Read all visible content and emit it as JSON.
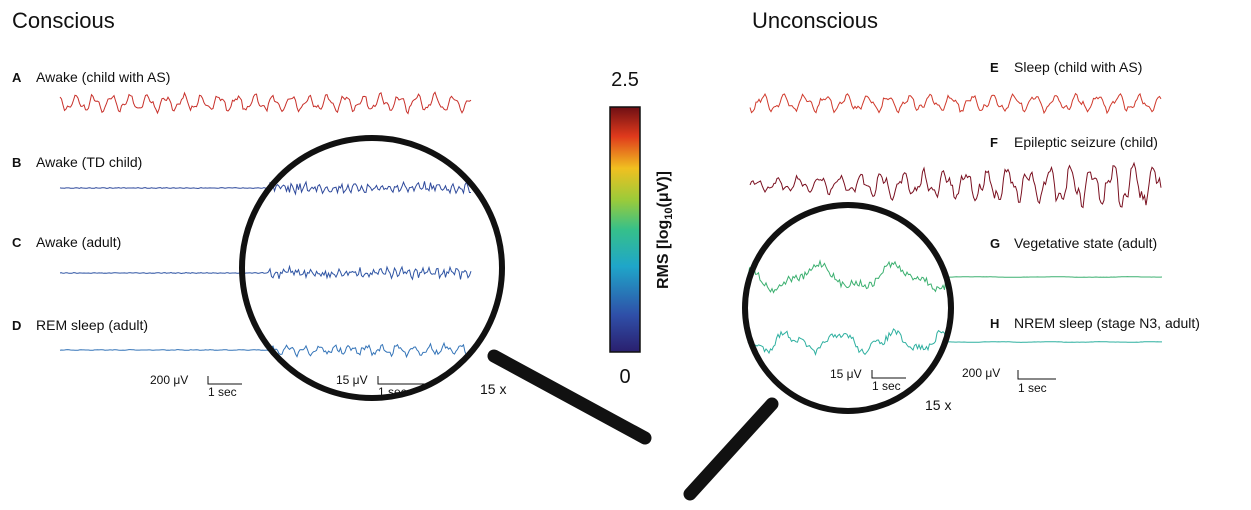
{
  "headings": {
    "conscious": "Conscious",
    "unconscious": "Unconscious"
  },
  "panels": [
    {
      "letter": "A",
      "label": "Awake (child with AS)"
    },
    {
      "letter": "B",
      "label": "Awake (TD child)"
    },
    {
      "letter": "C",
      "label": "Awake (adult)"
    },
    {
      "letter": "D",
      "label": "REM sleep (adult)"
    },
    {
      "letter": "E",
      "label": "Sleep (child with AS)"
    },
    {
      "letter": "F",
      "label": "Epileptic seizure (child)"
    },
    {
      "letter": "G",
      "label": "Vegetative state (adult)"
    },
    {
      "letter": "H",
      "label": "NREM sleep (stage N3, adult)"
    }
  ],
  "scale_bars": {
    "left": {
      "amplitude": "200 μV",
      "time": "1 sec"
    },
    "left_zoom": {
      "amplitude": "15 μV",
      "time": "1 sec"
    },
    "right_zoom": {
      "amplitude": "15 μV",
      "time": "1 sec"
    },
    "right": {
      "amplitude": "200 μV",
      "time": "1 sec"
    }
  },
  "magnification": {
    "left": "15 x",
    "right": "15 x"
  },
  "colorbar": {
    "max": "2.5",
    "min": "0",
    "label": {
      "prefix": "RMS [log",
      "subscript": "10",
      "suffix": "(μV)]"
    }
  }
}
